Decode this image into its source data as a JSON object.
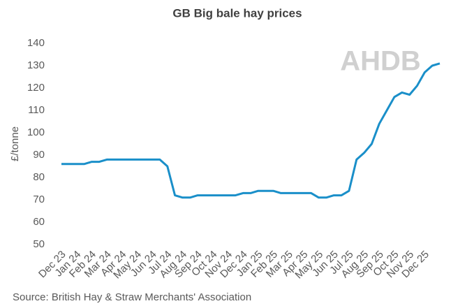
{
  "chart_data": {
    "type": "line",
    "title": "GB Big bale hay prices",
    "y_label": "£/tonne",
    "source": "Source: British Hay & Straw Merchants' Association",
    "watermark": "AHDB",
    "categories": [
      "Dec 23",
      null,
      "Jan 24",
      null,
      "Feb 24",
      null,
      "Mar 24",
      null,
      "Apr 24",
      null,
      "May 24",
      null,
      "Jun 24",
      null,
      "Jul 24",
      null,
      "Aug 24",
      null,
      "Sep 24",
      null,
      "Oct 24",
      null,
      "Nov 24",
      null,
      "Dec 24",
      null,
      "Jan 25",
      null,
      "Feb 25",
      null,
      "Mar 25",
      null,
      "Apr 25",
      null,
      "May 25",
      null,
      "Jun 25",
      null,
      "Jul 25",
      null,
      "Aug 25",
      null,
      "Sep 25",
      null,
      "Oct 25",
      null,
      "Nov 25",
      null,
      "Dec 25",
      null,
      null
    ],
    "values": [
      86,
      86,
      86,
      86,
      87,
      87,
      88,
      88,
      88,
      88,
      88,
      88,
      88,
      88,
      85,
      72,
      71,
      71,
      72,
      72,
      72,
      72,
      72,
      72,
      73,
      73,
      74,
      74,
      74,
      73,
      73,
      73,
      73,
      73,
      71,
      71,
      72,
      72,
      74,
      88,
      91,
      95,
      104,
      110,
      116,
      118,
      117,
      121,
      127,
      130,
      131
    ],
    "color": "#1a8fc9",
    "ylim": [
      50,
      140
    ],
    "yticks": [
      50,
      60,
      70,
      80,
      90,
      100,
      110,
      120,
      130,
      140
    ],
    "grid": false
  }
}
